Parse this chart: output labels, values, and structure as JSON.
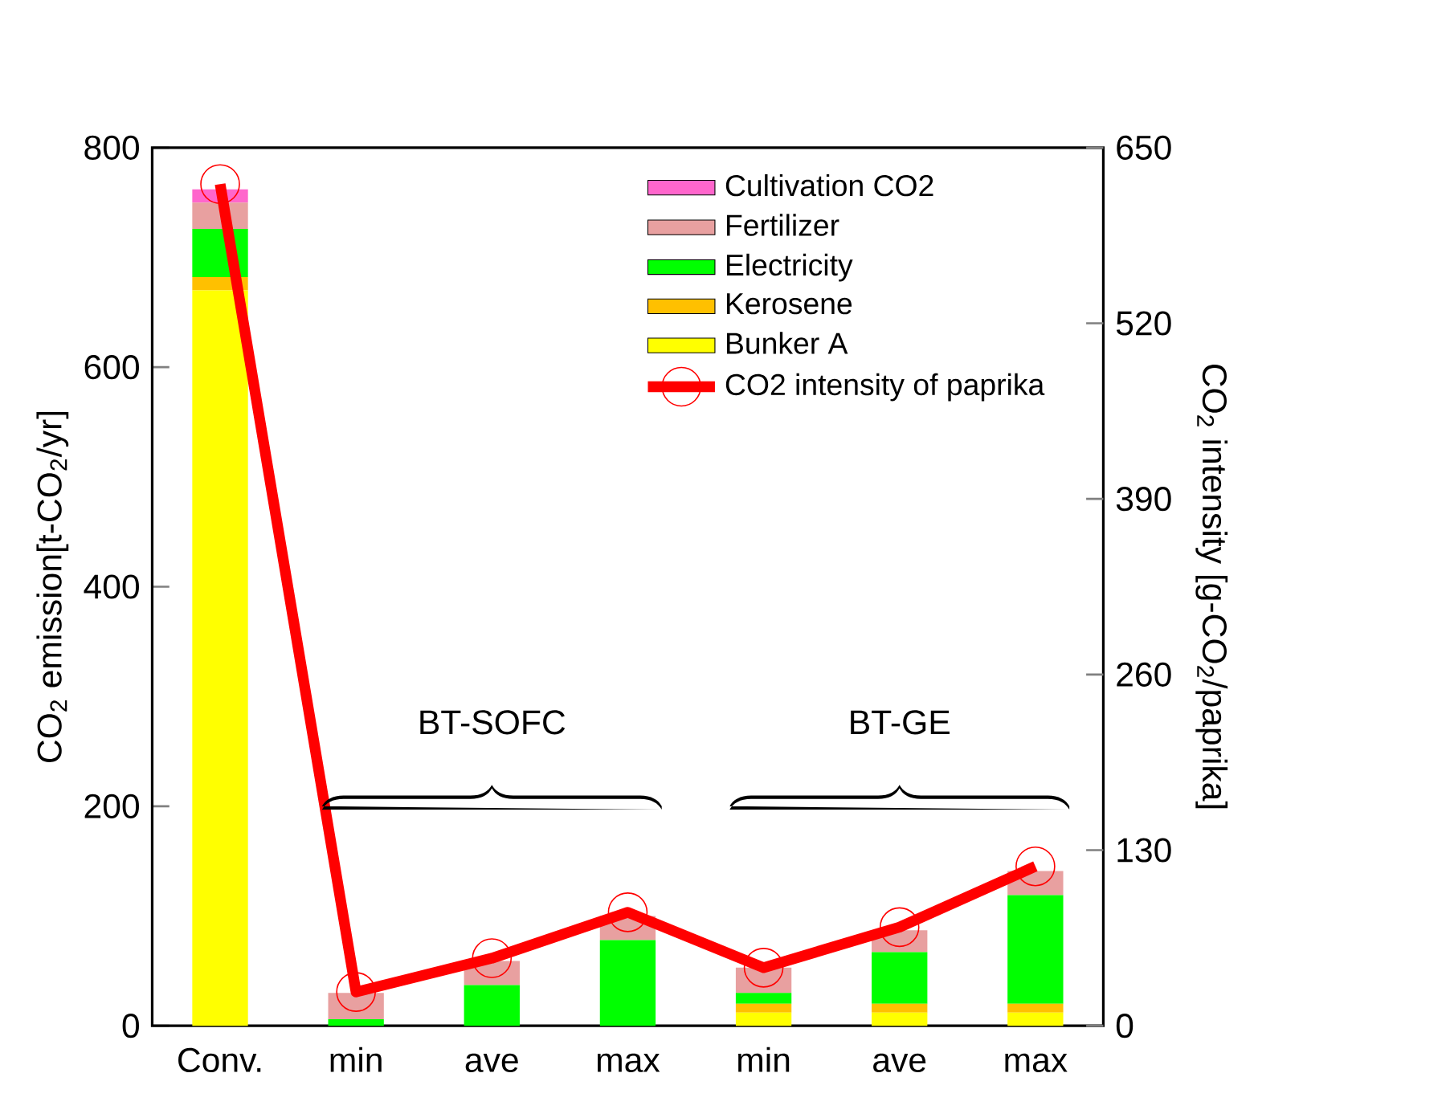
{
  "chart_data": {
    "type": "bar",
    "stacked": true,
    "categories": [
      "Conv.",
      "min",
      "ave",
      "max",
      "min",
      "ave",
      "max"
    ],
    "ylabel": "CO$_{2}$ emission[t-CO$_{2}$/yr]",
    "y2label": "CO$_{2}$ intensity [g-CO$_{2}$/paprika]",
    "ylim": [
      0,
      800
    ],
    "yticks": [
      0,
      200,
      400,
      600,
      800
    ],
    "y2lim": [
      0,
      650
    ],
    "y2ticks": [
      0,
      130,
      260,
      390,
      520,
      650
    ],
    "legend": "top right",
    "series": [
      {
        "name": "Bunker A",
        "color": "#ffff00",
        "values": [
          670,
          0,
          0,
          0,
          12,
          12,
          12
        ]
      },
      {
        "name": "Kerosene",
        "color": "#ffc000",
        "values": [
          12,
          0,
          0,
          0,
          8,
          8,
          8
        ]
      },
      {
        "name": "Electricity",
        "color": "#00ff00",
        "values": [
          44,
          6,
          37,
          78,
          10,
          47,
          99
        ]
      },
      {
        "name": "Fertilizer",
        "color": "#e8a0a0",
        "values": [
          24,
          24,
          22,
          22,
          23,
          20,
          22
        ]
      },
      {
        "name": "Cultivation CO2",
        "color": "#ff66cc",
        "values": [
          12,
          0,
          0,
          0,
          0,
          0,
          0
        ]
      },
      {
        "name": "CO2 intensity of paprika",
        "type": "line",
        "axis": "y2",
        "marker": "circle",
        "color": "#ff0000",
        "values": [
          623,
          25,
          50,
          84,
          43,
          73,
          118
        ]
      }
    ],
    "annotations": [
      "BT-SOFC",
      "BT-GE"
    ]
  }
}
